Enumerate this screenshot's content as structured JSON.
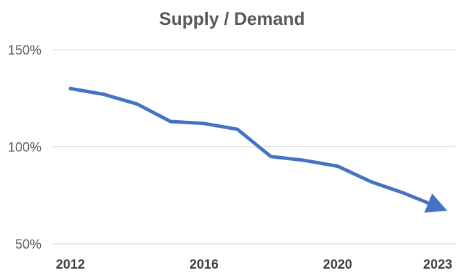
{
  "chart_data": {
    "type": "line",
    "title": "Supply / Demand",
    "xlabel": "",
    "ylabel": "",
    "x": [
      2012,
      2013,
      2014,
      2015,
      2016,
      2017,
      2018,
      2019,
      2020,
      2021,
      2022,
      2023
    ],
    "series": [
      {
        "values": [
          130,
          127,
          122,
          113,
          112,
          109,
          95,
          93,
          90,
          82,
          76,
          69
        ]
      }
    ],
    "x_ticks": [
      "2012",
      "2016",
      "2020",
      "2023"
    ],
    "y_ticks": [
      "50%",
      "100%",
      "150%"
    ],
    "ylim": [
      50,
      150
    ],
    "xlim": [
      2012,
      2023
    ],
    "grid": true,
    "line_color": "#4472C4",
    "end_marker": "arrow"
  }
}
